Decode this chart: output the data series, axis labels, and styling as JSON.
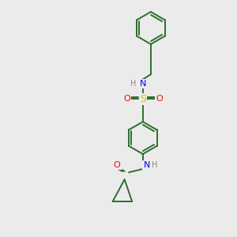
{
  "bg_color": "#ebebeb",
  "line_color": "#2d6e2d",
  "atom_colors": {
    "N": "#0000ff",
    "O": "#ff0000",
    "S": "#cccc00",
    "H": "#888888"
  },
  "line_width": 1.4,
  "figsize": [
    3.0,
    3.0
  ],
  "dpi": 100
}
